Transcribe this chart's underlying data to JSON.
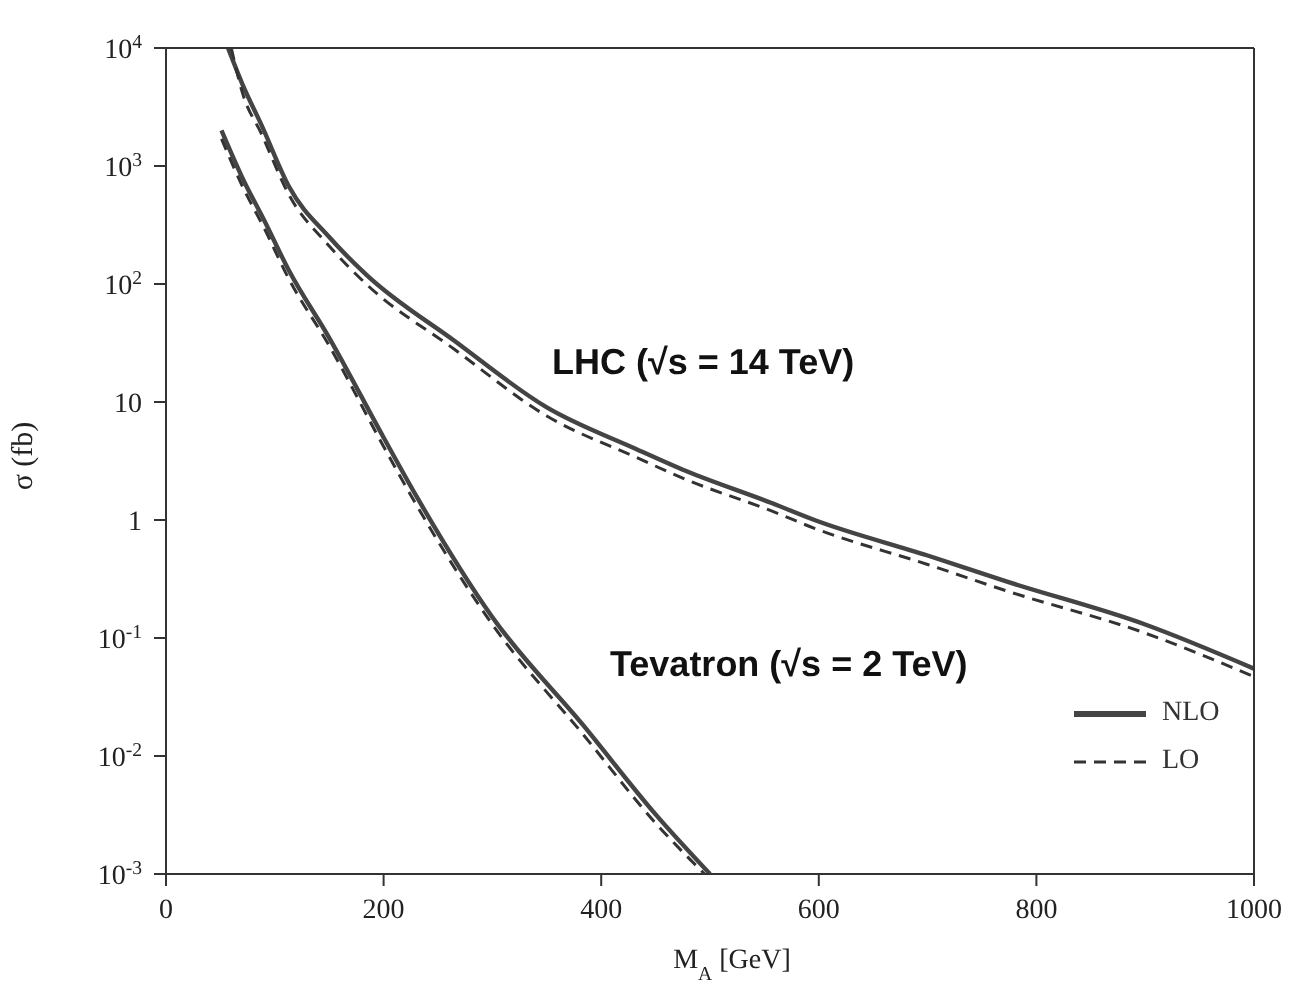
{
  "chart_data": {
    "type": "line",
    "xlabel": "M$_{A}$ [GeV]",
    "ylabel": "σ (fb)",
    "log": "y",
    "legend": "bottom right",
    "marker": "none",
    "xlim": [
      0,
      1000
    ],
    "xticks": [
      0,
      200,
      400,
      600,
      800,
      1000
    ],
    "ylim": [
      0.001,
      10000
    ],
    "yticks": [
      {
        "value": 0.001,
        "label": "10$^{-3}$"
      },
      {
        "value": 0.01,
        "label": "10$^{-2}$"
      },
      {
        "value": 0.1,
        "label": "10$^{-1}$"
      },
      1,
      10,
      {
        "value": 100,
        "label": "10$^{2}$"
      },
      {
        "value": 1000,
        "label": "10$^{3}$"
      },
      {
        "value": 10000,
        "label": "10$^{4}$"
      }
    ],
    "series": [
      {
        "name": "NLO",
        "color": "#444444",
        "line_style": "solid",
        "x": [
          57,
          70,
          88,
          113,
          150,
          184,
          265,
          350,
          432,
          478,
          556,
          596,
          700,
          773,
          900,
          1000
        ],
        "values": [
          10000,
          5000,
          2200,
          670,
          250,
          120,
          33,
          9,
          4,
          2.6,
          1.4,
          1,
          0.5,
          0.3,
          0.13,
          0.055
        ]
      },
      {
        "name": "LO",
        "color": "#333333",
        "line_style": "dashed",
        "x": [
          60,
          70,
          88,
          113,
          150,
          184,
          265,
          350,
          432,
          478,
          556,
          596,
          700,
          773,
          900,
          1000
        ],
        "values": [
          10000,
          4250,
          1850,
          570,
          210,
          100,
          28,
          7.6,
          3.4,
          2.2,
          1.2,
          0.85,
          0.42,
          0.25,
          0.11,
          0.047
        ]
      },
      {
        "color": "#444444",
        "line_style": "solid",
        "x": [
          51,
          70,
          90,
          113,
          150,
          200,
          230,
          300,
          384,
          450,
          500
        ],
        "values": [
          2000,
          800,
          350,
          130,
          35,
          5,
          1.6,
          0.15,
          0.018,
          0.0032,
          0.001
        ]
      },
      {
        "color": "#333333",
        "line_style": "dashed",
        "x": [
          51,
          70,
          90,
          113,
          150,
          200,
          230,
          300,
          384,
          450,
          495
        ],
        "values": [
          1700,
          680,
          300,
          110,
          30,
          4.2,
          1.35,
          0.13,
          0.015,
          0.0027,
          0.001
        ]
      }
    ],
    "annotations": [
      "LHC (√s = 14 TeV)",
      "Tevatron (√s = 2 TeV)"
    ]
  }
}
